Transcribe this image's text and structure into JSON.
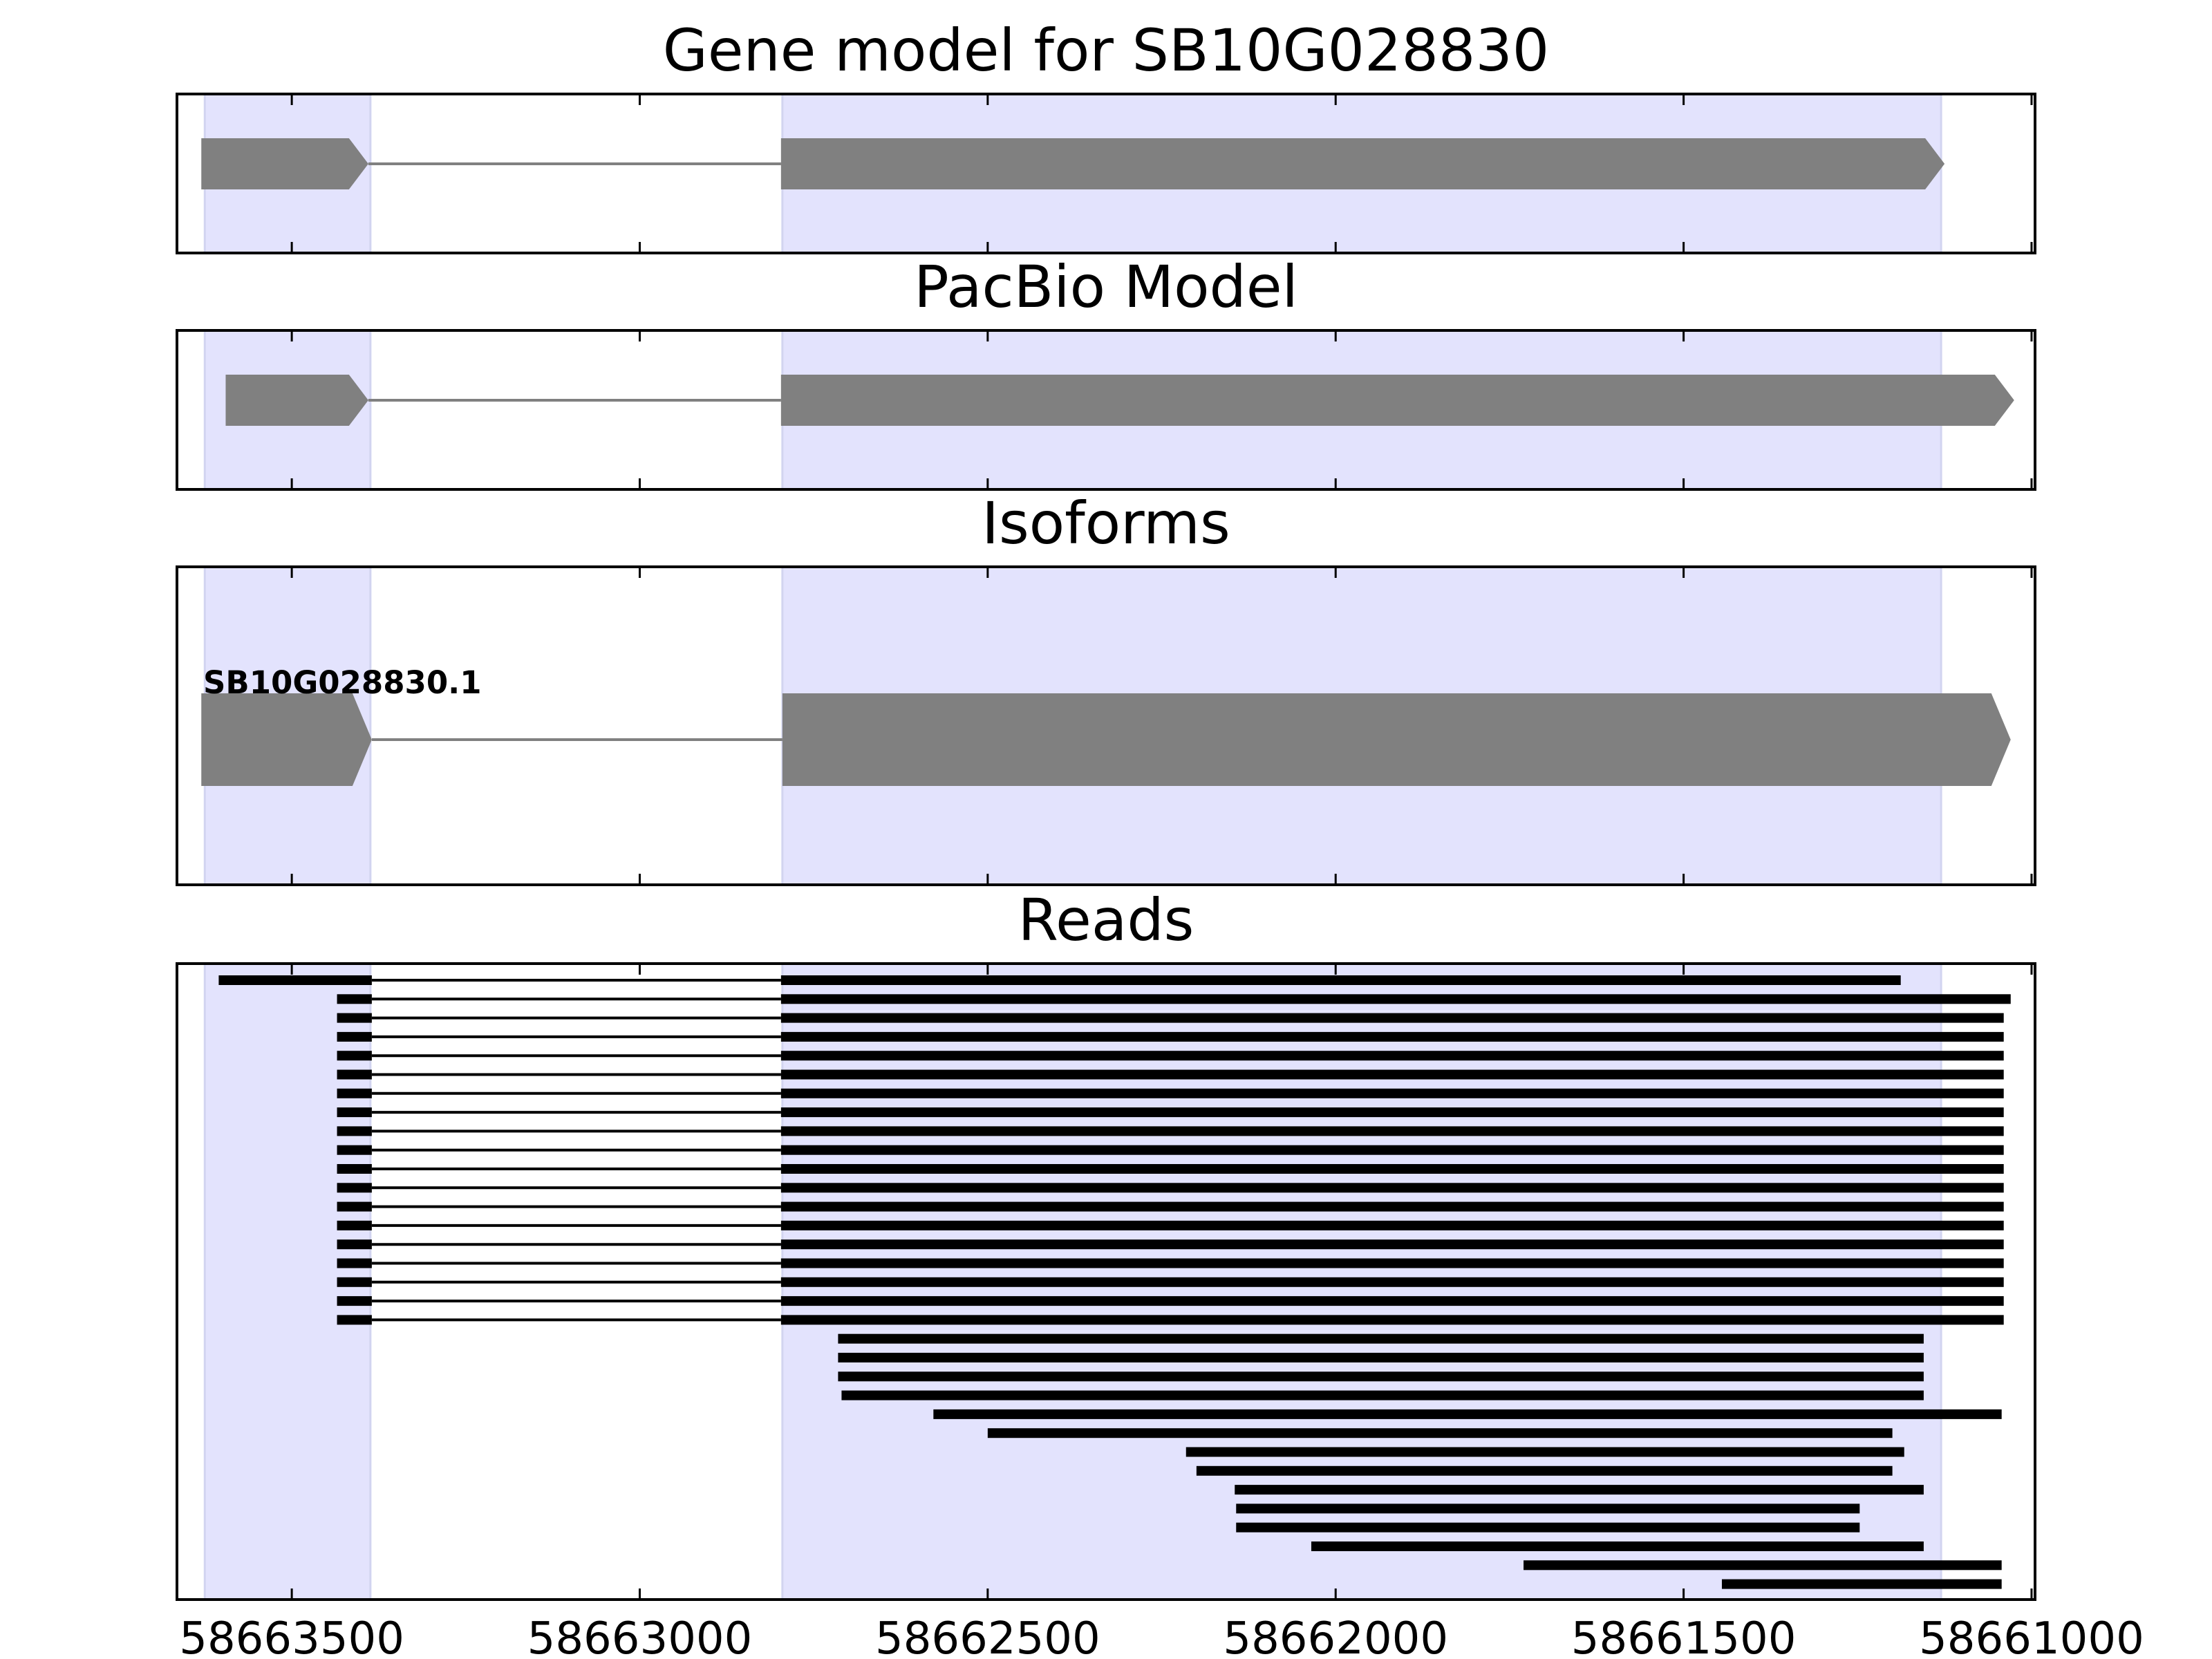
{
  "colors": {
    "exon_shade": "#e3e3fd",
    "exon_shade_edge": "#d2d4f0",
    "model_fill": "#808080",
    "intron_line": "#808080",
    "read_color": "#000000",
    "frame": "#000000"
  },
  "chart_data": {
    "type": "gene-structure",
    "x_axis": {
      "reversed": true,
      "range": [
        58663665,
        58660995
      ],
      "ticks": [
        58663500,
        58663000,
        58662500,
        58662000,
        58661500,
        58661000
      ],
      "tick_labels": [
        "58663500",
        "58663000",
        "58662500",
        "58662000",
        "58661500",
        "58661000"
      ]
    },
    "shaded_regions": [
      [
        58663625,
        58663387
      ],
      [
        58662795,
        58661130
      ]
    ],
    "panels": [
      {
        "id": "gene-model",
        "title": "Gene model for SB10G028830",
        "models": [
          {
            "exons": [
              [
                58663630,
                58663390
              ],
              [
                58662797,
                58661125
              ]
            ],
            "strand": "-"
          }
        ]
      },
      {
        "id": "pacbio-model",
        "title": "PacBio Model",
        "models": [
          {
            "exons": [
              [
                58663595,
                58663390
              ],
              [
                58662797,
                58661025
              ]
            ],
            "strand": "-"
          }
        ]
      },
      {
        "id": "isoforms",
        "title": "Isoforms",
        "models": [
          {
            "label": "SB10G028830.1",
            "exons": [
              [
                58663630,
                58663385
              ],
              [
                58662795,
                58661030
              ]
            ],
            "strand": "-"
          }
        ]
      },
      {
        "id": "reads",
        "title": "Reads",
        "reads": [
          [
            [
              58663605,
              58663385
            ],
            [
              58662797,
              58661188
            ]
          ],
          [
            [
              58663435,
              58663385
            ],
            [
              58662797,
              58661030
            ]
          ],
          [
            [
              58663435,
              58663385
            ],
            [
              58662797,
              58661040
            ]
          ],
          [
            [
              58663435,
              58663385
            ],
            [
              58662797,
              58661040
            ]
          ],
          [
            [
              58663435,
              58663385
            ],
            [
              58662797,
              58661040
            ]
          ],
          [
            [
              58663435,
              58663385
            ],
            [
              58662797,
              58661040
            ]
          ],
          [
            [
              58663435,
              58663385
            ],
            [
              58662797,
              58661040
            ]
          ],
          [
            [
              58663435,
              58663385
            ],
            [
              58662797,
              58661040
            ]
          ],
          [
            [
              58663435,
              58663385
            ],
            [
              58662797,
              58661040
            ]
          ],
          [
            [
              58663435,
              58663385
            ],
            [
              58662797,
              58661040
            ]
          ],
          [
            [
              58663435,
              58663385
            ],
            [
              58662797,
              58661040
            ]
          ],
          [
            [
              58663435,
              58663385
            ],
            [
              58662797,
              58661040
            ]
          ],
          [
            [
              58663435,
              58663385
            ],
            [
              58662797,
              58661040
            ]
          ],
          [
            [
              58663435,
              58663385
            ],
            [
              58662797,
              58661040
            ]
          ],
          [
            [
              58663435,
              58663385
            ],
            [
              58662797,
              58661040
            ]
          ],
          [
            [
              58663435,
              58663385
            ],
            [
              58662797,
              58661040
            ]
          ],
          [
            [
              58663435,
              58663385
            ],
            [
              58662797,
              58661040
            ]
          ],
          [
            [
              58663435,
              58663385
            ],
            [
              58662797,
              58661040
            ]
          ],
          [
            [
              58663435,
              58663385
            ],
            [
              58662797,
              58661040
            ]
          ],
          [
            [
              58662715,
              58661155
            ]
          ],
          [
            [
              58662715,
              58661155
            ]
          ],
          [
            [
              58662715,
              58661155
            ]
          ],
          [
            [
              58662710,
              58661155
            ]
          ],
          [
            [
              58662578,
              58661043
            ]
          ],
          [
            [
              58662500,
              58661200
            ]
          ],
          [
            [
              58662215,
              58661183
            ]
          ],
          [
            [
              58662200,
              58661200
            ]
          ],
          [
            [
              58662145,
              58661155
            ]
          ],
          [
            [
              58662143,
              58661247
            ]
          ],
          [
            [
              58662143,
              58661247
            ]
          ],
          [
            [
              58662035,
              58661155
            ]
          ],
          [
            [
              58661730,
              58661043
            ]
          ],
          [
            [
              58661445,
              58661043
            ]
          ]
        ]
      }
    ]
  }
}
